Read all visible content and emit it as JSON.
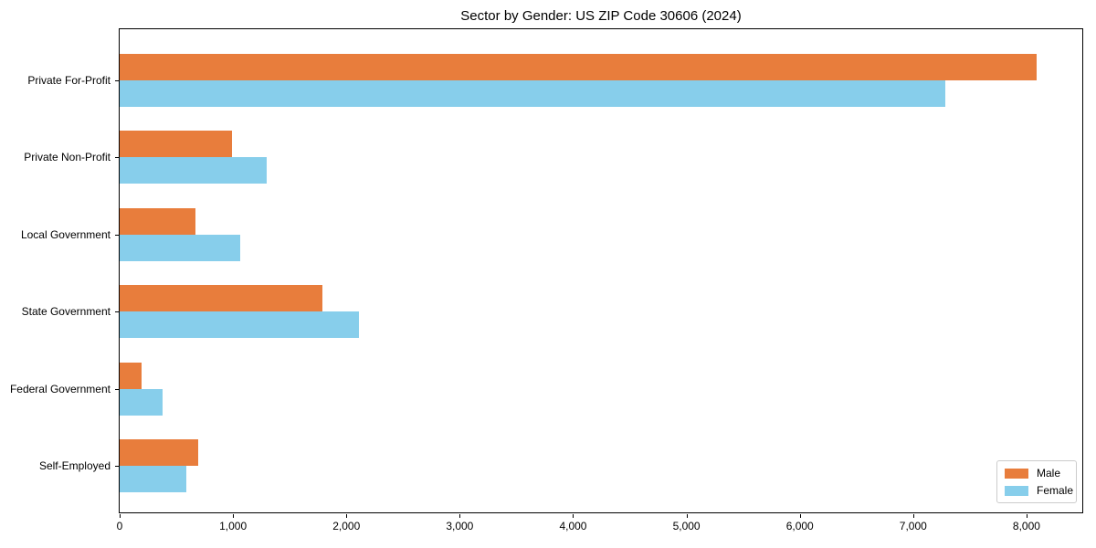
{
  "chart_data": {
    "type": "bar",
    "orientation": "horizontal",
    "title": "Sector by Gender: US ZIP Code 30606 (2024)",
    "categories": [
      "Private For-Profit",
      "Private Non-Profit",
      "Local Government",
      "State Government",
      "Federal Government",
      "Self-Employed"
    ],
    "series": [
      {
        "name": "Male",
        "color": "#e87d3c",
        "values": [
          8090,
          990,
          670,
          1790,
          190,
          690
        ]
      },
      {
        "name": "Female",
        "color": "#87ceeb",
        "values": [
          7280,
          1300,
          1060,
          2110,
          380,
          590
        ]
      }
    ],
    "xlabel": "",
    "ylabel": "",
    "xlim": [
      0,
      8500
    ],
    "xticks": [
      0,
      1000,
      2000,
      3000,
      4000,
      5000,
      6000,
      7000,
      8000
    ],
    "xtick_labels": [
      "0",
      "1,000",
      "2,000",
      "3,000",
      "4,000",
      "5,000",
      "6,000",
      "7,000",
      "8,000"
    ],
    "grid": false,
    "legend_position": "lower right"
  }
}
